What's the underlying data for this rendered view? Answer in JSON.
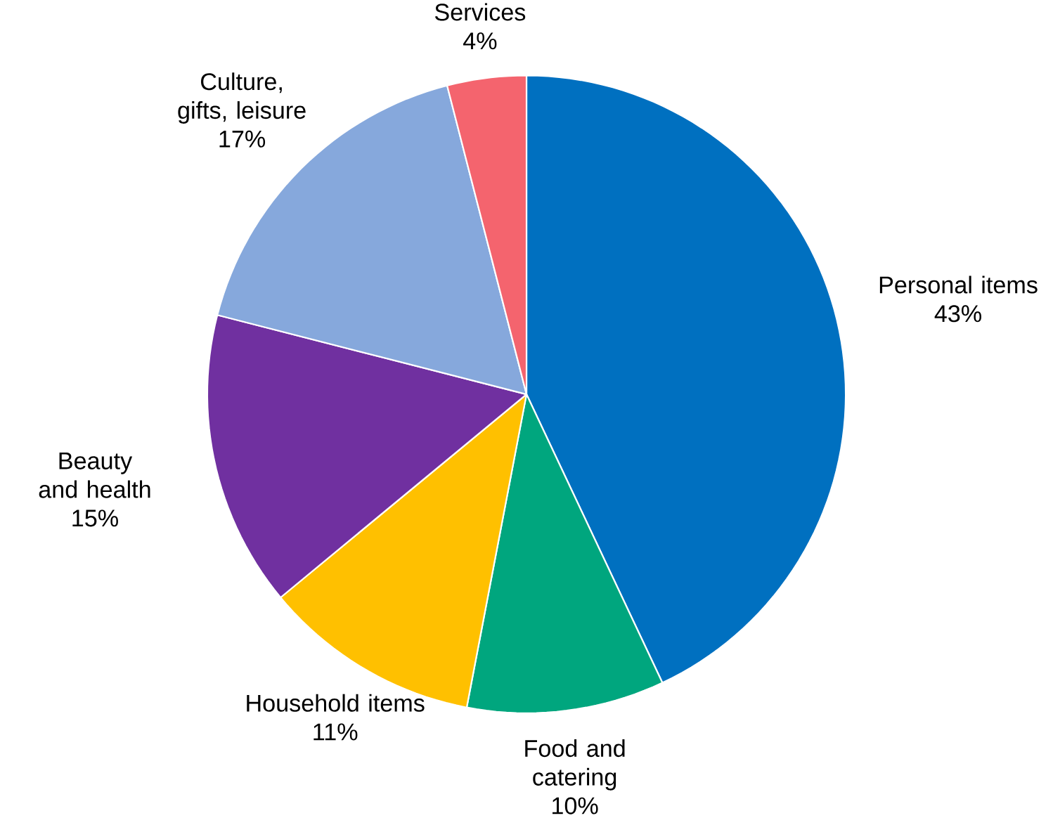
{
  "chart_data": {
    "type": "pie",
    "categories": [
      "Personal items",
      "Food and catering",
      "Household items",
      "Beauty and health",
      "Culture, gifts, leisure",
      "Services"
    ],
    "values": [
      43,
      10,
      11,
      15,
      17,
      4
    ],
    "colors": [
      "#0070c0",
      "#00a67e",
      "#ffc000",
      "#7030a0",
      "#86a8dc",
      "#f4646e"
    ],
    "value_labels": [
      "43%",
      "10%",
      "11%",
      "15%",
      "17%",
      "4%"
    ]
  }
}
